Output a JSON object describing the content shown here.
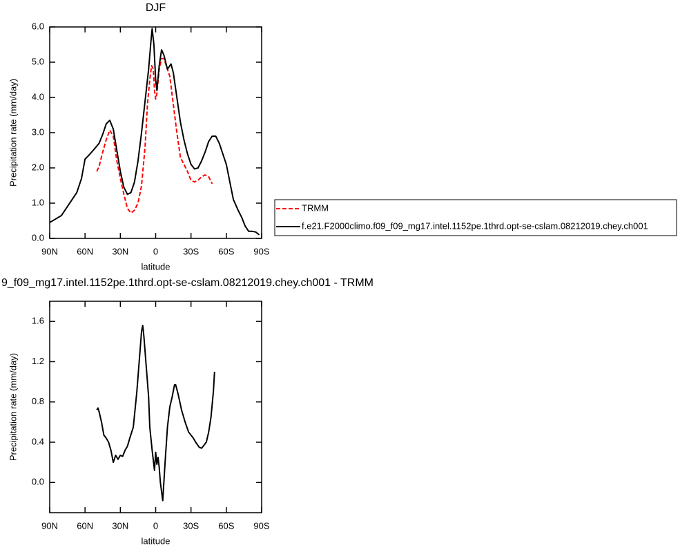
{
  "chart_data": [
    {
      "type": "line",
      "title": "DJF",
      "xlabel": "latitude",
      "ylabel": "Precipitation rate (mm/day)",
      "xlim": [
        90,
        -90
      ],
      "xticks": [
        {
          "value": 90,
          "label": "90N"
        },
        {
          "value": 60,
          "label": "60N"
        },
        {
          "value": 30,
          "label": "30N"
        },
        0,
        {
          "value": -30,
          "label": "30S"
        },
        {
          "value": -60,
          "label": "60S"
        },
        {
          "value": -90,
          "label": "90S"
        }
      ],
      "ylim": [
        0,
        6
      ],
      "yticks": [
        {
          "value": 0,
          "label": "0.0"
        },
        {
          "value": 1,
          "label": "1.0"
        },
        {
          "value": 2,
          "label": "2.0"
        },
        {
          "value": 3,
          "label": "3.0"
        },
        {
          "value": 4,
          "label": "4.0"
        },
        {
          "value": 5,
          "label": "5.0"
        },
        {
          "value": 6,
          "label": "6.0"
        }
      ],
      "legend": "right",
      "series": [
        {
          "name": "TRMM",
          "color": "#ff0000",
          "dash": true,
          "x": [
            50,
            48,
            45,
            42,
            39,
            36,
            33,
            30,
            27,
            24,
            21,
            18,
            15,
            12,
            9,
            7,
            5,
            3.5,
            2,
            1,
            0,
            -1,
            -3,
            -5,
            -7,
            -9,
            -12,
            -15,
            -18,
            -21,
            -24,
            -27,
            -30,
            -33,
            -36,
            -39,
            -42,
            -45,
            -48
          ],
          "values": [
            1.9,
            2.05,
            2.45,
            2.8,
            3.07,
            2.9,
            2.2,
            1.7,
            1.25,
            0.85,
            0.72,
            0.8,
            1.0,
            1.5,
            2.6,
            3.8,
            4.5,
            4.9,
            4.8,
            4.2,
            3.95,
            4.1,
            4.8,
            5.1,
            5.1,
            4.9,
            4.6,
            3.8,
            3.0,
            2.3,
            2.1,
            1.9,
            1.65,
            1.6,
            1.65,
            1.75,
            1.8,
            1.75,
            1.55
          ]
        },
        {
          "name": "f.e21.F2000climo.f09_f09_mg17.intel.1152pe.1thrd.opt-se-cslam.08212019.chey.ch001",
          "color": "#000000",
          "dash": false,
          "x": [
            90,
            85,
            80,
            75,
            70,
            67,
            63,
            60,
            57,
            53,
            48,
            45,
            42,
            39,
            36,
            33,
            30,
            27,
            24,
            21,
            18,
            15,
            12,
            9,
            6,
            4,
            3,
            1.5,
            0,
            -1,
            -3,
            -5,
            -7,
            -10,
            -12,
            -13,
            -15,
            -18,
            -21,
            -24,
            -27,
            -30,
            -33,
            -36,
            -39,
            -42,
            -45,
            -48,
            -51,
            -54,
            -57,
            -60,
            -63,
            -66,
            -70,
            -73,
            -76,
            -79,
            -82,
            -85,
            -88
          ],
          "values": [
            0.45,
            0.55,
            0.65,
            0.9,
            1.15,
            1.3,
            1.7,
            2.25,
            2.35,
            2.5,
            2.7,
            2.95,
            3.25,
            3.35,
            3.1,
            2.5,
            1.9,
            1.45,
            1.25,
            1.3,
            1.6,
            2.2,
            3.0,
            3.9,
            4.8,
            5.6,
            5.95,
            5.5,
            4.5,
            4.2,
            4.9,
            5.35,
            5.2,
            4.8,
            4.9,
            4.95,
            4.7,
            4.0,
            3.3,
            2.8,
            2.4,
            2.1,
            1.97,
            2.0,
            2.2,
            2.45,
            2.75,
            2.9,
            2.9,
            2.7,
            2.4,
            2.1,
            1.6,
            1.1,
            0.8,
            0.6,
            0.35,
            0.2,
            0.2,
            0.18,
            0.1
          ]
        }
      ]
    },
    {
      "type": "line",
      "title": "9_f09_mg17.intel.1152pe.1thrd.opt-se-cslam.08212019.chey.ch001 - TRMM",
      "xlabel": "latitude",
      "ylabel": "Precipitation rate (mm/day)",
      "xlim": [
        90,
        -90
      ],
      "xticks": [
        {
          "value": 90,
          "label": "90N"
        },
        {
          "value": 60,
          "label": "60N"
        },
        {
          "value": 30,
          "label": "30N"
        },
        0,
        {
          "value": -30,
          "label": "30S"
        },
        {
          "value": -60,
          "label": "60S"
        },
        {
          "value": -90,
          "label": "90S"
        }
      ],
      "ylim": [
        -0.3,
        1.8
      ],
      "yticks": [
        {
          "value": 0,
          "label": "0.0"
        },
        {
          "value": 0.4,
          "label": "0.4"
        },
        {
          "value": 0.8,
          "label": "0.8"
        },
        {
          "value": 1.2,
          "label": "1.2"
        },
        {
          "value": 1.6,
          "label": "1.6"
        }
      ],
      "series": [
        {
          "color": "#000000",
          "dash": false,
          "x": [
            50,
            49,
            48,
            46,
            44,
            42,
            40,
            38,
            36,
            34,
            32,
            30,
            28,
            26,
            24,
            22,
            19,
            16,
            14,
            12,
            11,
            10,
            8,
            6,
            5,
            3,
            1,
            0,
            -1,
            -2,
            -3,
            -4,
            -6,
            -8,
            -10,
            -12,
            -14,
            -16,
            -17,
            -19,
            -22,
            -25,
            -28,
            -32,
            -34,
            -37,
            -39,
            -41,
            -43,
            -45,
            -47,
            -49,
            -50
          ],
          "values": [
            0.72,
            0.74,
            0.7,
            0.6,
            0.47,
            0.44,
            0.4,
            0.32,
            0.2,
            0.27,
            0.23,
            0.27,
            0.26,
            0.32,
            0.36,
            0.44,
            0.55,
            0.9,
            1.2,
            1.5,
            1.56,
            1.45,
            1.15,
            0.85,
            0.55,
            0.32,
            0.12,
            0.3,
            0.18,
            0.25,
            0.15,
            0.0,
            -0.18,
            0.2,
            0.55,
            0.75,
            0.85,
            0.97,
            0.97,
            0.88,
            0.72,
            0.6,
            0.5,
            0.44,
            0.4,
            0.35,
            0.34,
            0.37,
            0.4,
            0.5,
            0.65,
            0.9,
            1.1
          ]
        }
      ]
    }
  ]
}
